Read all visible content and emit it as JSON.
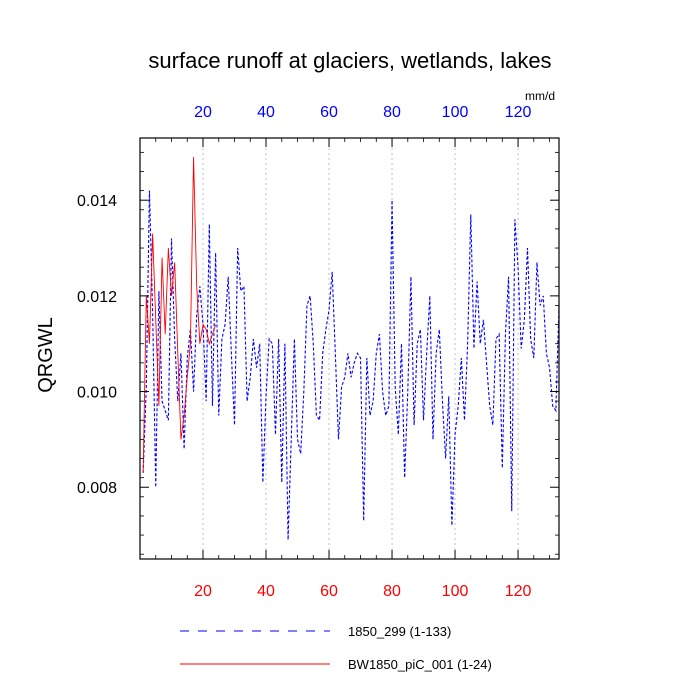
{
  "chart_data": {
    "type": "line",
    "title": "surface runoff at glaciers, wetlands, lakes",
    "ylabel": "QRGWL",
    "units": "mm/d",
    "xlim": [
      0,
      133
    ],
    "ylim": [
      0.0065,
      0.0153
    ],
    "bottom_ticks": [
      "20",
      "40",
      "60",
      "80",
      "100",
      "120"
    ],
    "top_ticks": [
      "20",
      "40",
      "60",
      "80",
      "100",
      "120"
    ],
    "y_ticks": [
      "0.008",
      "0.010",
      "0.012",
      "0.014"
    ],
    "grid": "vertical dotted lines at x ticks",
    "series": [
      {
        "name": "1850_299 (1-133)",
        "color": "#0000ff",
        "dash": "dashed",
        "x_start": 1,
        "values": [
          0.0083,
          0.0101,
          0.0142,
          0.0117,
          0.008,
          0.0121,
          0.0098,
          0.0096,
          0.0094,
          0.0132,
          0.0111,
          0.0098,
          0.0108,
          0.0088,
          0.0107,
          0.0113,
          0.01,
          0.0116,
          0.0122,
          0.0114,
          0.0098,
          0.0135,
          0.0097,
          0.0129,
          0.0095,
          0.0111,
          0.0114,
          0.0124,
          0.0108,
          0.0093,
          0.013,
          0.0121,
          0.0122,
          0.0098,
          0.0103,
          0.0111,
          0.0105,
          0.011,
          0.0081,
          0.0099,
          0.0111,
          0.011,
          0.0091,
          0.0111,
          0.0081,
          0.011,
          0.0069,
          0.009,
          0.0111,
          0.009,
          0.0087,
          0.01,
          0.0118,
          0.012,
          0.011,
          0.0095,
          0.0094,
          0.0108,
          0.0113,
          0.0117,
          0.0125,
          0.0108,
          0.009,
          0.0101,
          0.0103,
          0.0108,
          0.0103,
          0.0106,
          0.0108,
          0.0107,
          0.0073,
          0.0107,
          0.0095,
          0.0098,
          0.0108,
          0.0112,
          0.01,
          0.0095,
          0.0097,
          0.014,
          0.0101,
          0.0091,
          0.011,
          0.0082,
          0.01,
          0.0124,
          0.0093,
          0.011,
          0.0113,
          0.0094,
          0.0108,
          0.012,
          0.009,
          0.0108,
          0.0113,
          0.0098,
          0.0086,
          0.0099,
          0.0072,
          0.0091,
          0.0097,
          0.0107,
          0.0094,
          0.011,
          0.0137,
          0.0109,
          0.0123,
          0.011,
          0.0115,
          0.0106,
          0.0097,
          0.0093,
          0.0111,
          0.0112,
          0.0084,
          0.0112,
          0.0124,
          0.0075,
          0.0136,
          0.0126,
          0.0109,
          0.0115,
          0.013,
          0.0111,
          0.0107,
          0.0127,
          0.0118,
          0.012,
          0.0108,
          0.0105,
          0.0097,
          0.0096,
          0.0118
        ]
      },
      {
        "name": "BW1850_piC_001 (1-24)",
        "color": "#ff0000",
        "dash": "solid",
        "x_start": 1,
        "values": [
          0.0083,
          0.012,
          0.011,
          0.0133,
          0.0115,
          0.0097,
          0.0128,
          0.0112,
          0.013,
          0.012,
          0.0127,
          0.0108,
          0.009,
          0.0095,
          0.0103,
          0.011,
          0.0149,
          0.0122,
          0.011,
          0.0114,
          0.0113,
          0.011,
          0.0112,
          0.0114
        ]
      }
    ]
  }
}
